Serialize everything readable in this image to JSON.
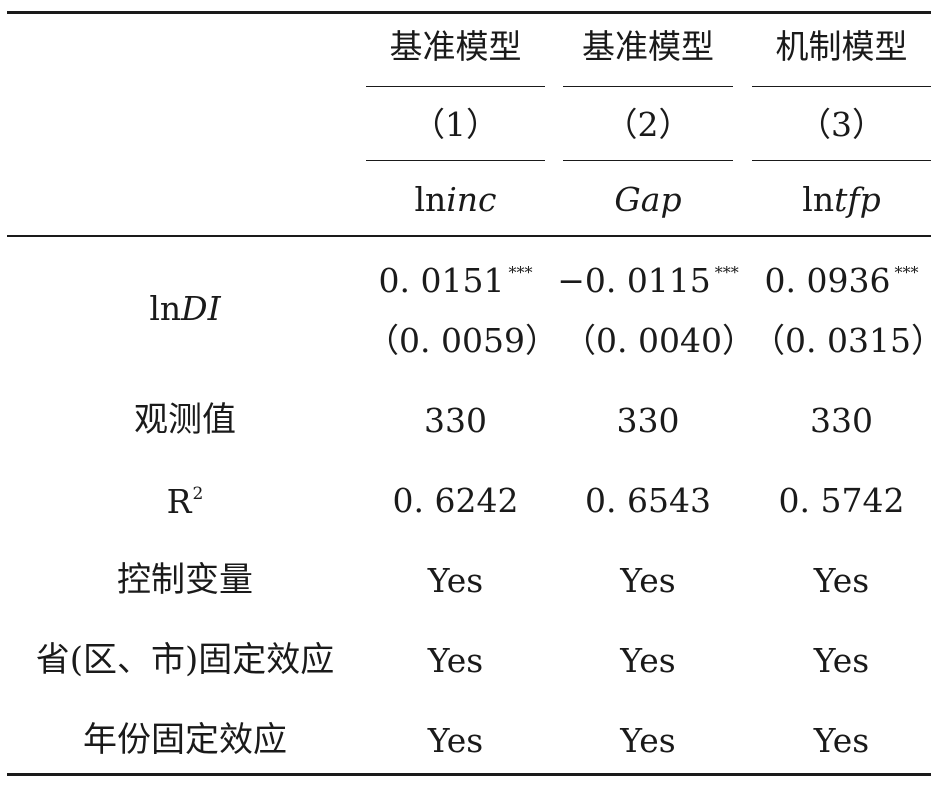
{
  "header": {
    "models": [
      "基准模型",
      "基准模型",
      "机制模型"
    ],
    "numbers": [
      "（1）",
      "（2）",
      "（3）"
    ],
    "depvars": [
      {
        "prefix": "ln",
        "italic": "inc"
      },
      {
        "prefix": "",
        "italic": "Gap"
      },
      {
        "prefix": "ln",
        "italic": "tfp"
      }
    ]
  },
  "rows": {
    "lndi": {
      "label_prefix": "ln",
      "label_italic": "DI",
      "coef": [
        "0. 0151",
        "−0. 0115",
        "0. 0936"
      ],
      "stars": [
        "***",
        "***",
        "***"
      ],
      "se": [
        "（0. 0059）",
        "（0. 0040）",
        "（0. 0315）"
      ]
    },
    "obs": {
      "label": "观测值",
      "values": [
        "330",
        "330",
        "330"
      ]
    },
    "r2": {
      "label_base": "R",
      "label_sup": "2",
      "values": [
        "0. 6242",
        "0. 6543",
        "0. 5742"
      ]
    },
    "controls": {
      "label": "控制变量",
      "values": [
        "Yes",
        "Yes",
        "Yes"
      ]
    },
    "province_fe": {
      "label": "省(区、市)固定效应",
      "values": [
        "Yes",
        "Yes",
        "Yes"
      ]
    },
    "year_fe": {
      "label": "年份固定效应",
      "values": [
        "Yes",
        "Yes",
        "Yes"
      ]
    }
  }
}
